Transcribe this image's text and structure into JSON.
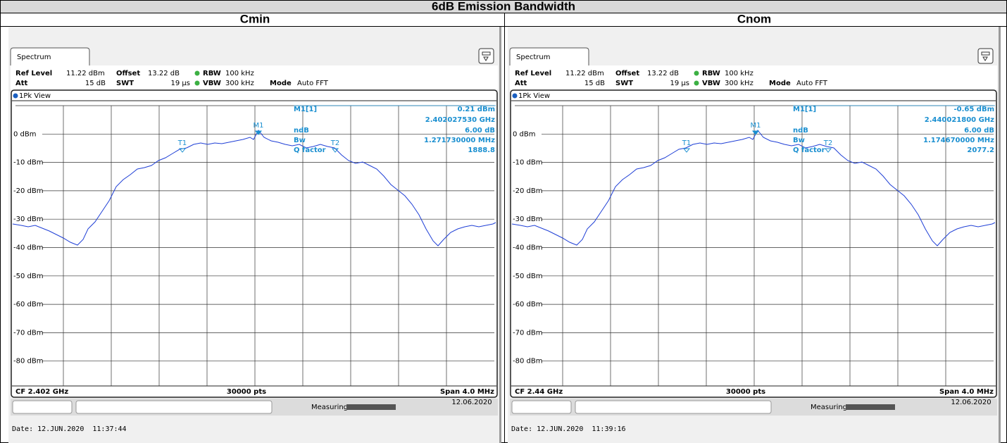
{
  "title": "6dB Emission Bandwidth",
  "columns": [
    {
      "heading": "Cmin",
      "spectrum": {
        "tab": "Spectrum",
        "ref_level_label": "Ref Level",
        "ref_level": "11.22 dBm",
        "offset_label": "Offset",
        "offset": "13.22 dB",
        "rbw_label": "RBW",
        "rbw": "100 kHz",
        "att_label": "Att",
        "att": "15 dB",
        "swt_label": "SWT",
        "swt": "19 µs",
        "vbw_label": "VBW",
        "vbw": "300 kHz",
        "mode_label": "Mode",
        "mode": "Auto FFT",
        "view": "1Pk View",
        "y_labels": [
          "0 dBm",
          "-10 dBm",
          "-20 dBm",
          "-30 dBm",
          "-40 dBm",
          "-50 dBm",
          "-60 dBm",
          "-70 dBm",
          "-80 dBm"
        ],
        "markers": [
          "M1",
          "T1",
          "T2"
        ],
        "readout": [
          {
            "label": "M1[1]",
            "values": [
              "0.21 dBm",
              "2.402027530 GHz"
            ]
          },
          {
            "label": "ndB",
            "values": [
              "6.00 dB"
            ]
          },
          {
            "label": "Bw",
            "values": [
              "1.271730000 MHz"
            ]
          },
          {
            "label": "Q factor",
            "values": [
              "1888.8"
            ]
          }
        ],
        "cf": "CF 2.402 GHz",
        "points": "30000 pts",
        "span": "Span 4.0 MHz",
        "status": "Measuring...",
        "status_date": "12.06.2020",
        "date_line": "Date: 12.JUN.2020  11:37:44"
      }
    },
    {
      "heading": "Cnom",
      "spectrum": {
        "tab": "Spectrum",
        "ref_level_label": "Ref Level",
        "ref_level": "11.22 dBm",
        "offset_label": "Offset",
        "offset": "13.22 dB",
        "rbw_label": "RBW",
        "rbw": "100 kHz",
        "att_label": "Att",
        "att": "15 dB",
        "swt_label": "SWT",
        "swt": "19 µs",
        "vbw_label": "VBW",
        "vbw": "300 kHz",
        "mode_label": "Mode",
        "mode": "Auto FFT",
        "view": "1Pk View",
        "y_labels": [
          "0 dBm",
          "-10 dBm",
          "-20 dBm",
          "-30 dBm",
          "-40 dBm",
          "-50 dBm",
          "-60 dBm",
          "-70 dBm",
          "-80 dBm"
        ],
        "markers": [
          "M1",
          "T1",
          "T2"
        ],
        "readout": [
          {
            "label": "M1[1]",
            "values": [
              "-0.65 dBm",
              "2.440021800 GHz"
            ]
          },
          {
            "label": "ndB",
            "values": [
              "6.00 dB"
            ]
          },
          {
            "label": "Bw",
            "values": [
              "1.174670000 MHz"
            ]
          },
          {
            "label": "Q factor",
            "values": [
              "2077.2"
            ]
          }
        ],
        "cf": "CF 2.44 GHz",
        "points": "30000 pts",
        "span": "Span 4.0 MHz",
        "status": "Measuring...",
        "status_date": "12.06.2020",
        "date_line": "Date: 12.JUN.2020  11:39:16"
      }
    }
  ]
}
